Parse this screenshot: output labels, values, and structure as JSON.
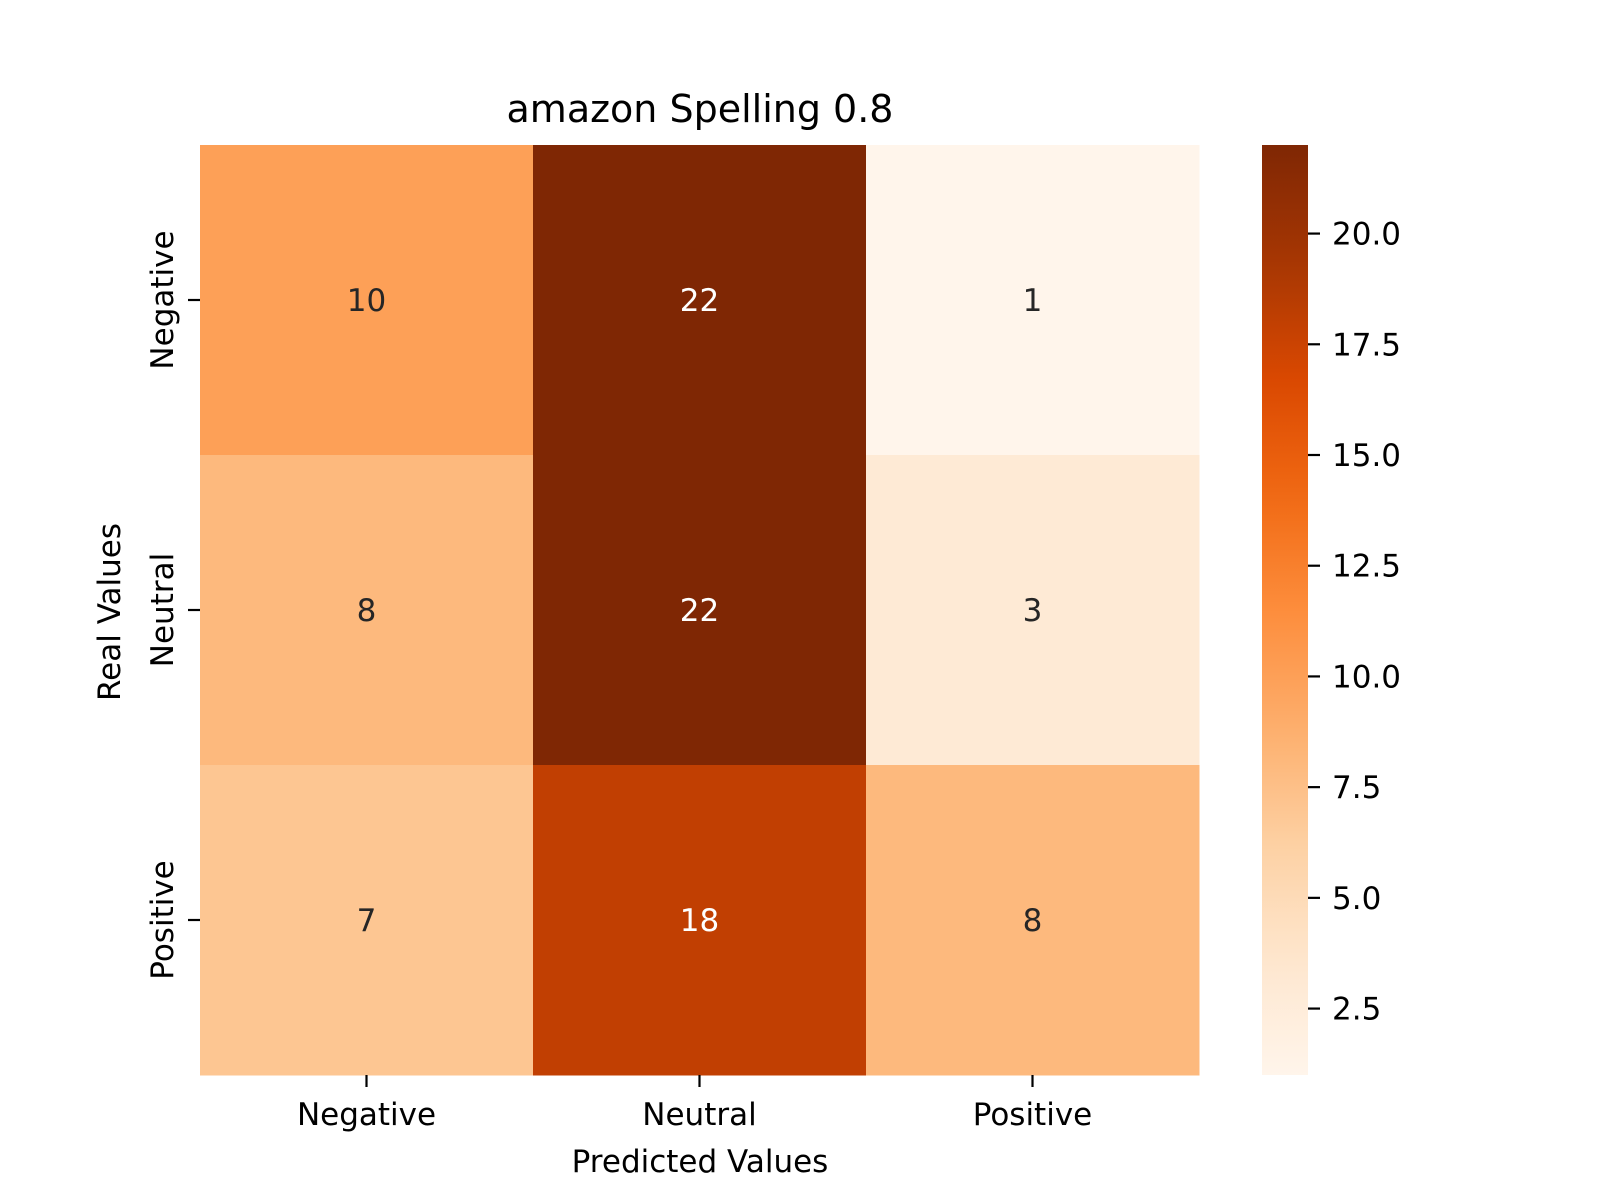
{
  "chart_data": {
    "type": "heatmap",
    "title": "amazon Spelling 0.8",
    "xlabel": "Predicted Values",
    "ylabel": "Real Values",
    "x_categories": [
      "Negative",
      "Neutral",
      "Positive"
    ],
    "y_categories": [
      "Negative",
      "Neutral",
      "Positive"
    ],
    "values": [
      [
        10,
        22,
        1
      ],
      [
        8,
        22,
        3
      ],
      [
        7,
        18,
        8
      ]
    ],
    "colorbar": {
      "min": 1,
      "max": 22,
      "ticks": [
        2.5,
        5.0,
        7.5,
        10.0,
        12.5,
        15.0,
        17.5,
        20.0
      ],
      "tick_labels": [
        "2.5",
        "5.0",
        "7.5",
        "10.0",
        "12.5",
        "15.0",
        "17.5",
        "20.0"
      ],
      "colormap": "Oranges"
    },
    "colors": {
      "cell_text_dark": "#262626",
      "cell_text_light": "#ffffff"
    }
  }
}
